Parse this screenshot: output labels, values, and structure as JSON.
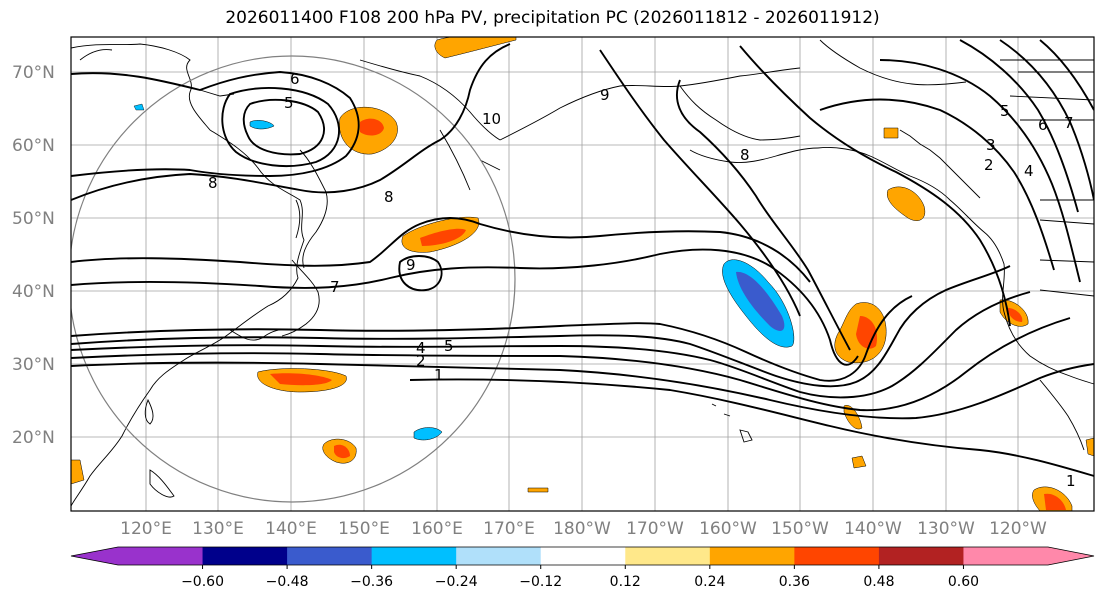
{
  "title": "2026011400 F108 200 hPa PV, precipitation PC (2026011812 - 2026011912)",
  "lat_labels": [
    "70°N",
    "60°N",
    "50°N",
    "40°N",
    "30°N",
    "20°N"
  ],
  "lon_labels": [
    "120°E",
    "130°E",
    "140°E",
    "150°E",
    "160°E",
    "170°E",
    "180°W",
    "170°W",
    "160°W",
    "150°W",
    "140°W",
    "130°W",
    "120°W"
  ],
  "contour_labels": [
    "6",
    "5",
    "8",
    "8",
    "9",
    "7",
    "4",
    "5",
    "2",
    "1",
    "10",
    "9",
    "8",
    "1",
    "2",
    "3",
    "4",
    "5",
    "6",
    "7"
  ],
  "colorbar": {
    "ticks": [
      "−0.60",
      "−0.48",
      "−0.36",
      "−0.24",
      "−0.12",
      "0.12",
      "0.24",
      "0.36",
      "0.48",
      "0.60"
    ],
    "colors": [
      "#9932cc",
      "#00008b",
      "#3a5bcd",
      "#00bfff",
      "#b0e0fa",
      "#ffffff",
      "#ffe88a",
      "#ffa500",
      "#ff4500",
      "#b22222",
      "#ff88aa"
    ]
  }
}
